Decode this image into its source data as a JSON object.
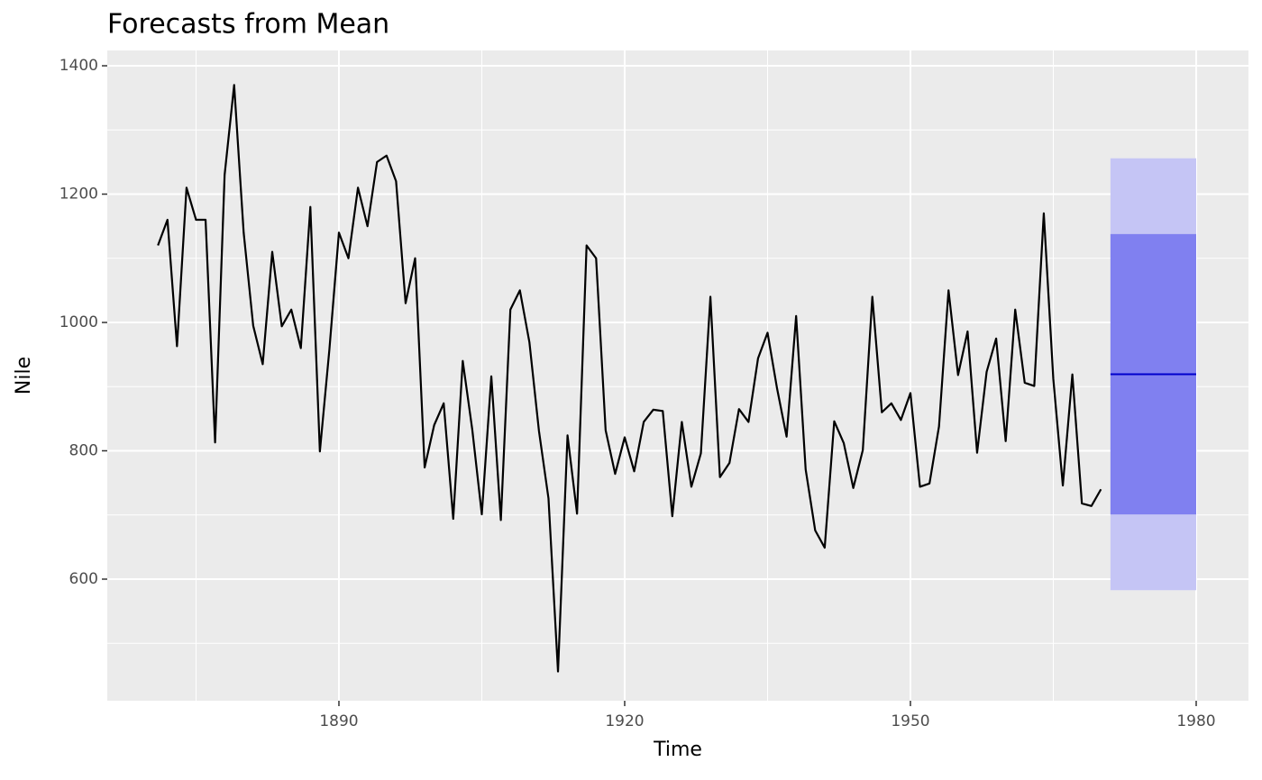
{
  "chart_data": {
    "type": "forecast-line",
    "title": "Forecasts from Mean",
    "x_label": "Time",
    "y_label": "Nile",
    "x": [
      1871,
      1872,
      1873,
      1874,
      1875,
      1876,
      1877,
      1878,
      1879,
      1880,
      1881,
      1882,
      1883,
      1884,
      1885,
      1886,
      1887,
      1888,
      1889,
      1890,
      1891,
      1892,
      1893,
      1894,
      1895,
      1896,
      1897,
      1898,
      1899,
      1900,
      1901,
      1902,
      1903,
      1904,
      1905,
      1906,
      1907,
      1908,
      1909,
      1910,
      1911,
      1912,
      1913,
      1914,
      1915,
      1916,
      1917,
      1918,
      1919,
      1920,
      1921,
      1922,
      1923,
      1924,
      1925,
      1926,
      1927,
      1928,
      1929,
      1930,
      1931,
      1932,
      1933,
      1934,
      1935,
      1936,
      1937,
      1938,
      1939,
      1940,
      1941,
      1942,
      1943,
      1944,
      1945,
      1946,
      1947,
      1948,
      1949,
      1950,
      1951,
      1952,
      1953,
      1954,
      1955,
      1956,
      1957,
      1958,
      1959,
      1960,
      1961,
      1962,
      1963,
      1964,
      1965,
      1966,
      1967,
      1968,
      1969,
      1970
    ],
    "series": [
      {
        "name": "Nile",
        "color": "#000000",
        "values": [
          1120,
          1160,
          963,
          1210,
          1160,
          1160,
          813,
          1230,
          1370,
          1140,
          995,
          935,
          1110,
          994,
          1020,
          960,
          1180,
          799,
          958,
          1140,
          1100,
          1210,
          1150,
          1250,
          1260,
          1220,
          1030,
          1100,
          774,
          840,
          874,
          694,
          940,
          833,
          701,
          916,
          692,
          1020,
          1050,
          969,
          831,
          726,
          456,
          824,
          702,
          1120,
          1100,
          832,
          764,
          821,
          768,
          845,
          864,
          862,
          698,
          845,
          744,
          796,
          1040,
          759,
          781,
          865,
          845,
          944,
          984,
          897,
          822,
          1010,
          771,
          676,
          649,
          846,
          812,
          742,
          801,
          1040,
          860,
          874,
          848,
          890,
          744,
          749,
          838,
          1050,
          918,
          986,
          797,
          923,
          975,
          815,
          1020,
          906,
          901,
          1170,
          912,
          746,
          919,
          718,
          714,
          740
        ]
      }
    ],
    "forecast": {
      "x": [
        1971,
        1972,
        1973,
        1974,
        1975,
        1976,
        1977,
        1978,
        1979,
        1980
      ],
      "mean": [
        919.35,
        919.35,
        919.35,
        919.35,
        919.35,
        919.35,
        919.35,
        919.35,
        919.35,
        919.35
      ],
      "lo80": [
        700.9,
        700.9,
        700.9,
        700.9,
        700.9,
        700.9,
        700.9,
        700.9,
        700.9,
        700.9
      ],
      "hi80": [
        1137.8,
        1137.8,
        1137.8,
        1137.8,
        1137.8,
        1137.8,
        1137.8,
        1137.8,
        1137.8,
        1137.8
      ],
      "lo95": [
        582.8,
        582.8,
        582.8,
        582.8,
        582.8,
        582.8,
        582.8,
        582.8,
        582.8,
        582.8
      ],
      "hi95": [
        1255.9,
        1255.9,
        1255.9,
        1255.9,
        1255.9,
        1255.9,
        1255.9,
        1255.9,
        1255.9,
        1255.9
      ],
      "mean_color": "#0000cc",
      "color80": "#8080f0",
      "color95": "#c5c5f5"
    },
    "xlim": [
      1865.68,
      1985.49
    ],
    "ylim": [
      410.5,
      1423.9
    ],
    "xticks": [
      1890,
      1920,
      1950,
      1980
    ],
    "yticks": [
      600,
      800,
      1000,
      1200,
      1400
    ],
    "minor_xticks": [
      1875,
      1905,
      1935,
      1965
    ],
    "minor_yticks": [
      500,
      700,
      900,
      1100,
      1300
    ],
    "grid": true
  }
}
